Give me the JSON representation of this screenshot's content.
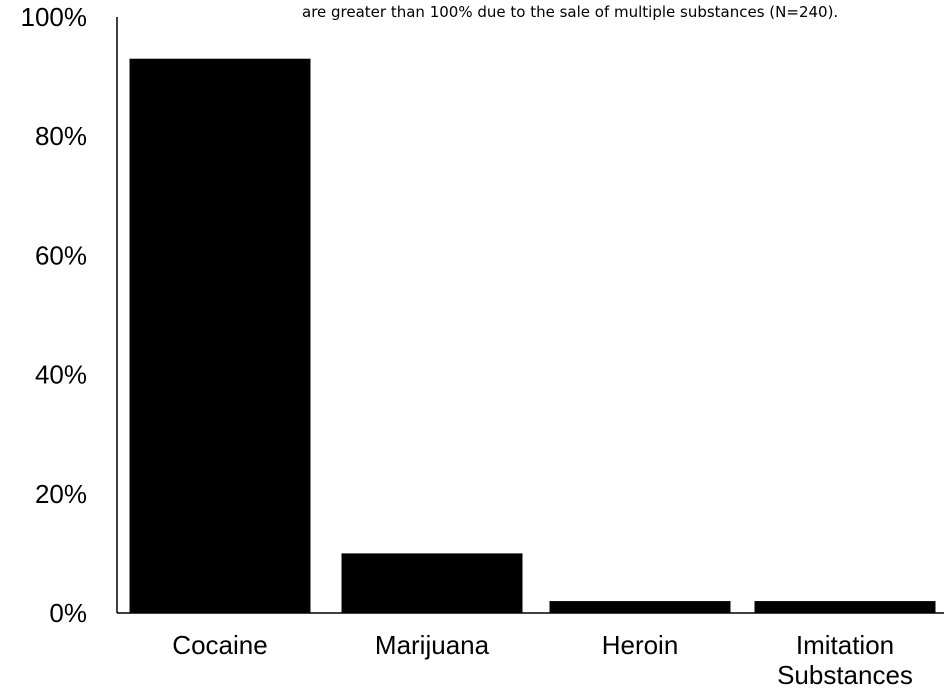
{
  "chart_data": {
    "type": "bar",
    "note": "are greater than 100% due to the sale of multiple substances (N=240).",
    "categories": [
      "Cocaine",
      "Marijuana",
      "Heroin",
      "Imitation Substances"
    ],
    "category_lines": [
      [
        "Cocaine"
      ],
      [
        "Marijuana"
      ],
      [
        "Heroin"
      ],
      [
        "Imitation",
        "Substances"
      ]
    ],
    "values": [
      93,
      10,
      2,
      2
    ],
    "ylim": [
      0,
      100
    ],
    "yticks": [
      0,
      20,
      40,
      60,
      80,
      100
    ],
    "ytick_labels": [
      "0%",
      "20%",
      "40%",
      "60%",
      "80%",
      "100%"
    ],
    "grid": false,
    "bar_color": "#000000",
    "axis_color": "#000000"
  }
}
